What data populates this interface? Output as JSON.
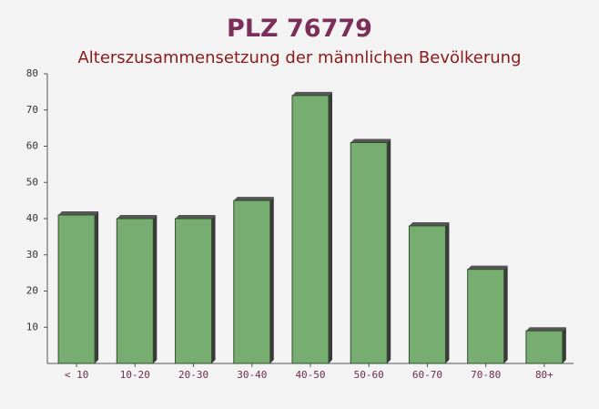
{
  "chart_data": {
    "type": "bar",
    "title": "PLZ 76779",
    "subtitle": "Alterszusammensetzung der männlichen Bevölkerung",
    "categories": [
      "< 10",
      "10-20",
      "20-30",
      "30-40",
      "40-50",
      "50-60",
      "60-70",
      "70-80",
      "80+"
    ],
    "values": [
      41,
      40,
      40,
      45,
      74,
      61,
      38,
      26,
      9
    ],
    "color": "#6aa563",
    "ylim": [
      0,
      80
    ],
    "yticks": [
      10,
      20,
      30,
      40,
      50,
      60,
      70,
      80
    ],
    "grid": false
  }
}
